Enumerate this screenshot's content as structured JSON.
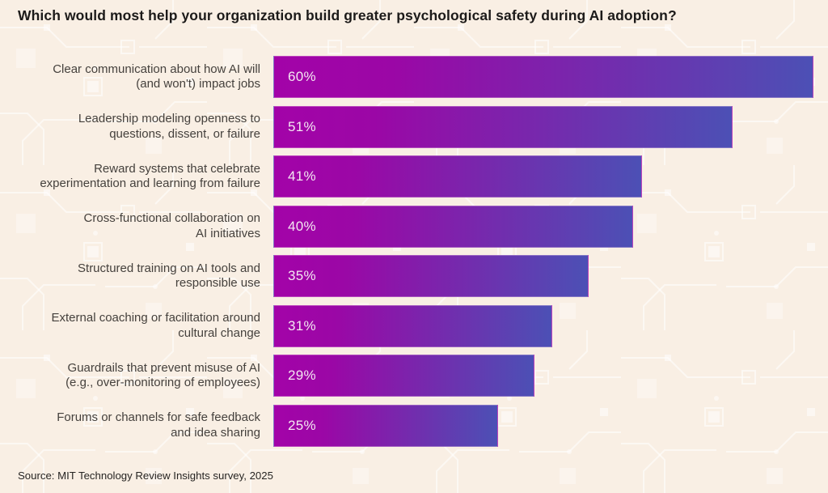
{
  "page": {
    "background_color": "#f9efe4",
    "title": "Which would most help your organization build greater psychological safety during AI adoption?",
    "source": "Source: MIT Technology Review Insights survey, 2025"
  },
  "chart_data": {
    "type": "bar",
    "orientation": "horizontal",
    "title": "Which would most help your organization build greater psychological safety during AI adoption?",
    "categories": [
      "Clear communication about how AI will (and won't) impact jobs",
      "Leadership modeling openness to questions, dissent, or failure",
      "Reward systems that celebrate experimentation and learning from failure",
      "Cross-functional collaboration on AI initiatives",
      "Structured training on AI tools and responsible use",
      "External coaching or facilitation around cultural change",
      "Guardrails that prevent misuse of AI (e.g., over-monitoring of employees)",
      "Forums or channels for safe feedback and idea sharing"
    ],
    "category_lines": [
      [
        "Clear communication about how AI will",
        "(and won't) impact jobs"
      ],
      [
        "Leadership modeling openness to",
        "questions, dissent, or failure"
      ],
      [
        "Reward systems that celebrate",
        "experimentation and learning from failure"
      ],
      [
        "Cross-functional collaboration on",
        "AI initiatives"
      ],
      [
        "Structured training on AI tools and",
        "responsible use"
      ],
      [
        "External coaching or facilitation around",
        "cultural change"
      ],
      [
        "Guardrails that prevent misuse of AI",
        "(e.g., over-monitoring of employees)"
      ],
      [
        "Forums or channels for safe feedback",
        "and idea sharing"
      ]
    ],
    "values": [
      60,
      51,
      41,
      40,
      35,
      31,
      29,
      25
    ],
    "value_labels": [
      "60%",
      "51%",
      "41%",
      "40%",
      "35%",
      "31%",
      "29%",
      "25%"
    ],
    "xlabel": "",
    "ylabel": "",
    "xlim": [
      0,
      60
    ],
    "grid": false,
    "legend": false,
    "bar_gradient_left": "#a303a8",
    "bar_gradient_mid": "#9b07a6",
    "bar_gradient_right": "#4c50b5",
    "value_label_color": "#f4e8f2",
    "category_label_color": "#45413d"
  }
}
